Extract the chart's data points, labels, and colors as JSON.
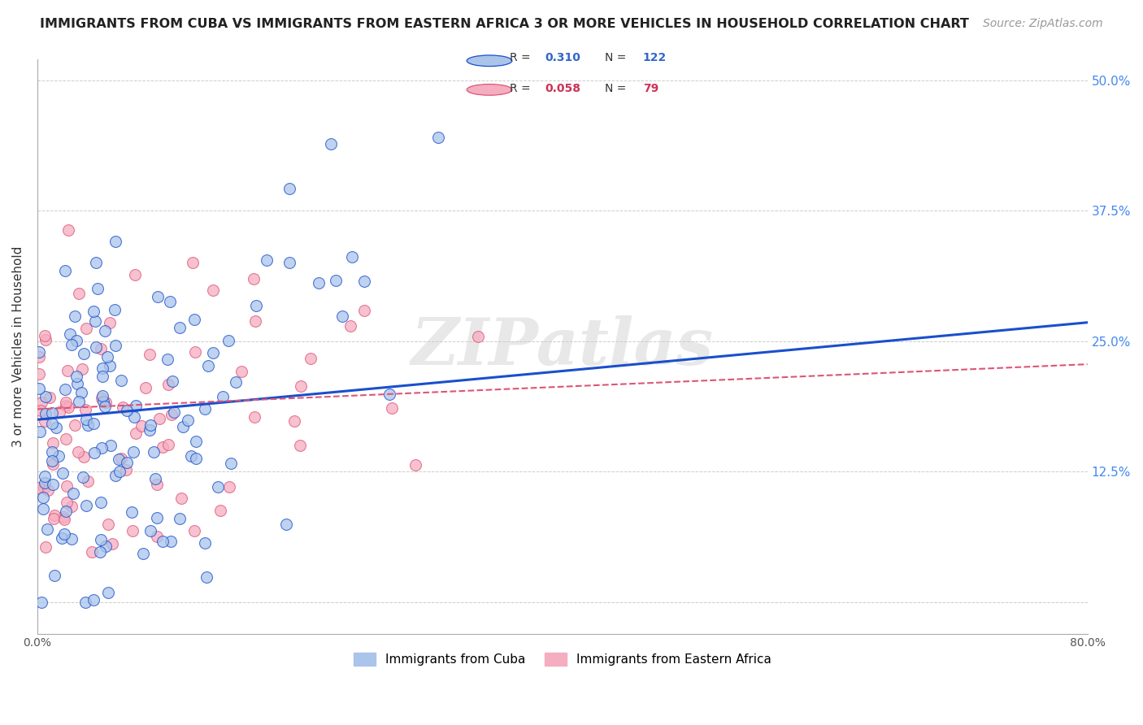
{
  "title": "IMMIGRANTS FROM CUBA VS IMMIGRANTS FROM EASTERN AFRICA 3 OR MORE VEHICLES IN HOUSEHOLD CORRELATION CHART",
  "source": "Source: ZipAtlas.com",
  "ylabel": "3 or more Vehicles in Household",
  "xmin": 0.0,
  "xmax": 0.8,
  "ymin": -0.03,
  "ymax": 0.52,
  "legend_blue_r": "0.310",
  "legend_blue_n": "122",
  "legend_pink_r": "0.058",
  "legend_pink_n": "79",
  "legend_label_blue": "Immigrants from Cuba",
  "legend_label_pink": "Immigrants from Eastern Africa",
  "blue_color": "#aac4ea",
  "pink_color": "#f5adc0",
  "trend_blue_color": "#1a4fcc",
  "trend_pink_color": "#dd5577",
  "watermark": "ZIPatlas",
  "background_color": "#ffffff",
  "grid_color": "#cccccc",
  "title_fontsize": 11.5,
  "source_fontsize": 10,
  "axis_label_fontsize": 11,
  "tick_label_fontsize": 10,
  "blue_trend_start_y": 0.175,
  "blue_trend_end_y": 0.268,
  "pink_trend_start_y": 0.185,
  "pink_trend_end_y": 0.228
}
